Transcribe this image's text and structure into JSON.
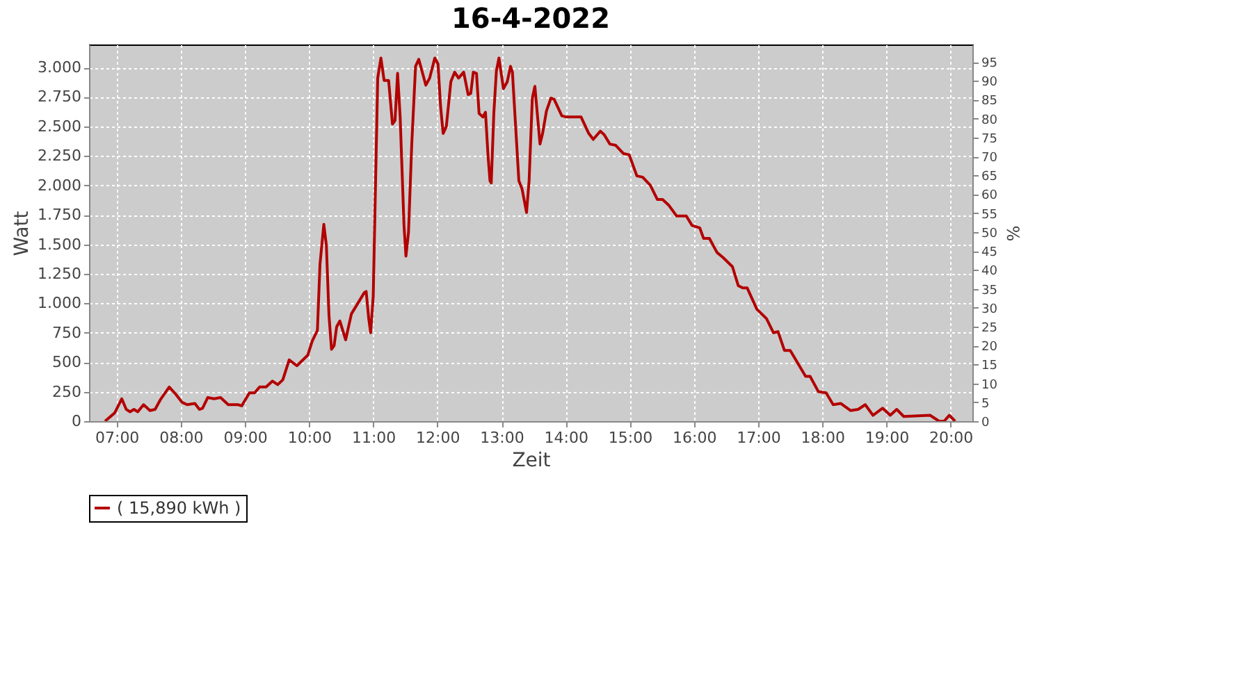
{
  "chart_data": {
    "type": "line",
    "title": "16-4-2022",
    "xlabel": "Zeit",
    "ylabel": "Watt",
    "y2label": "%",
    "xlim": [
      6.57,
      20.34
    ],
    "ylim": [
      0,
      3195
    ],
    "y2lim": [
      0,
      99.6
    ],
    "xticks": [
      {
        "value": 7,
        "label": "07:00"
      },
      {
        "value": 8,
        "label": "08:00"
      },
      {
        "value": 9,
        "label": "09:00"
      },
      {
        "value": 10,
        "label": "10:00"
      },
      {
        "value": 11,
        "label": "11:00"
      },
      {
        "value": 12,
        "label": "12:00"
      },
      {
        "value": 13,
        "label": "13:00"
      },
      {
        "value": 14,
        "label": "14:00"
      },
      {
        "value": 15,
        "label": "15:00"
      },
      {
        "value": 16,
        "label": "16:00"
      },
      {
        "value": 17,
        "label": "17:00"
      },
      {
        "value": 18,
        "label": "18:00"
      },
      {
        "value": 19,
        "label": "19:00"
      },
      {
        "value": 20,
        "label": "20:00"
      }
    ],
    "yticks": [
      0,
      250,
      500,
      750,
      {
        "value": 1000,
        "label": "1.000"
      },
      {
        "value": 1250,
        "label": "1.250"
      },
      {
        "value": 1500,
        "label": "1.500"
      },
      {
        "value": 1750,
        "label": "1.750"
      },
      {
        "value": 2000,
        "label": "2.000"
      },
      {
        "value": 2250,
        "label": "2.250"
      },
      {
        "value": 2500,
        "label": "2.500"
      },
      {
        "value": 2750,
        "label": "2.750"
      },
      {
        "value": 3000,
        "label": "3.000"
      }
    ],
    "y2ticks": [
      0,
      5,
      10,
      15,
      20,
      25,
      30,
      35,
      40,
      45,
      50,
      55,
      60,
      65,
      70,
      75,
      80,
      85,
      90,
      95
    ],
    "grid": true,
    "legend": "bottom",
    "series": [
      {
        "name": "( 15,890 kWh )",
        "color": "#b30000",
        "x": [
          6.82,
          6.97,
          7.08,
          7.15,
          7.21,
          7.27,
          7.33,
          7.42,
          7.52,
          7.6,
          7.68,
          7.82,
          7.92,
          8.02,
          8.1,
          8.22,
          8.29,
          8.34,
          8.42,
          8.52,
          8.62,
          8.74,
          8.89,
          8.95,
          9.07,
          9.15,
          9.23,
          9.33,
          9.43,
          9.51,
          9.59,
          9.69,
          9.81,
          9.98,
          10.05,
          10.13,
          10.17,
          10.23,
          10.27,
          10.31,
          10.35,
          10.39,
          10.43,
          10.48,
          10.57,
          10.66,
          10.86,
          10.89,
          10.93,
          10.96,
          11.0,
          11.07,
          11.12,
          11.17,
          11.24,
          11.3,
          11.34,
          11.38,
          11.42,
          11.48,
          11.51,
          11.55,
          11.6,
          11.66,
          11.71,
          11.82,
          11.88,
          11.96,
          12.01,
          12.05,
          12.09,
          12.14,
          12.21,
          12.27,
          12.33,
          12.41,
          12.48,
          12.52,
          12.56,
          12.61,
          12.65,
          12.71,
          12.75,
          12.79,
          12.82,
          12.84,
          12.88,
          12.92,
          12.96,
          13.03,
          13.09,
          13.14,
          13.17,
          13.27,
          13.32,
          13.39,
          13.43,
          13.48,
          13.52,
          13.6,
          13.64,
          13.7,
          13.77,
          13.82,
          13.94,
          14.01,
          14.24,
          14.36,
          14.43,
          14.54,
          14.6,
          14.69,
          14.78,
          14.9,
          14.99,
          15.11,
          15.2,
          15.32,
          15.43,
          15.51,
          15.61,
          15.73,
          15.88,
          15.97,
          16.09,
          16.15,
          16.24,
          16.36,
          16.45,
          16.6,
          16.69,
          16.76,
          16.83,
          16.98,
          17.13,
          17.24,
          17.31,
          17.41,
          17.5,
          17.61,
          17.74,
          17.81,
          17.94,
          18.06,
          18.17,
          18.29,
          18.44,
          18.56,
          18.67,
          18.79,
          18.94,
          19.06,
          19.16,
          19.27,
          19.68,
          19.82,
          19.9,
          19.98,
          20.07
        ],
        "values": [
          0,
          70,
          190,
          100,
          80,
          100,
          80,
          140,
          90,
          100,
          180,
          290,
          230,
          160,
          140,
          150,
          100,
          110,
          200,
          190,
          200,
          140,
          140,
          130,
          240,
          240,
          290,
          290,
          340,
          310,
          350,
          520,
          470,
          560,
          680,
          770,
          1330,
          1670,
          1490,
          900,
          610,
          640,
          800,
          850,
          690,
          910,
          1090,
          1100,
          870,
          750,
          1060,
          2910,
          3080,
          2890,
          2890,
          2520,
          2550,
          2950,
          2580,
          1660,
          1400,
          1600,
          2340,
          3010,
          3070,
          2850,
          2910,
          3080,
          3030,
          2670,
          2440,
          2500,
          2880,
          2960,
          2910,
          2960,
          2770,
          2780,
          2960,
          2950,
          2610,
          2580,
          2620,
          2250,
          2040,
          2020,
          2610,
          2970,
          3080,
          2820,
          2880,
          3010,
          2960,
          2040,
          1970,
          1770,
          2040,
          2740,
          2840,
          2350,
          2440,
          2630,
          2740,
          2730,
          2590,
          2580,
          2580,
          2440,
          2390,
          2460,
          2430,
          2350,
          2340,
          2270,
          2260,
          2080,
          2070,
          2000,
          1880,
          1880,
          1830,
          1740,
          1740,
          1660,
          1640,
          1550,
          1550,
          1430,
          1390,
          1310,
          1150,
          1130,
          1130,
          950,
          870,
          750,
          760,
          600,
          600,
          500,
          380,
          380,
          250,
          240,
          140,
          150,
          90,
          100,
          140,
          50,
          110,
          50,
          100,
          40,
          50,
          0,
          0,
          50,
          0
        ]
      }
    ]
  }
}
